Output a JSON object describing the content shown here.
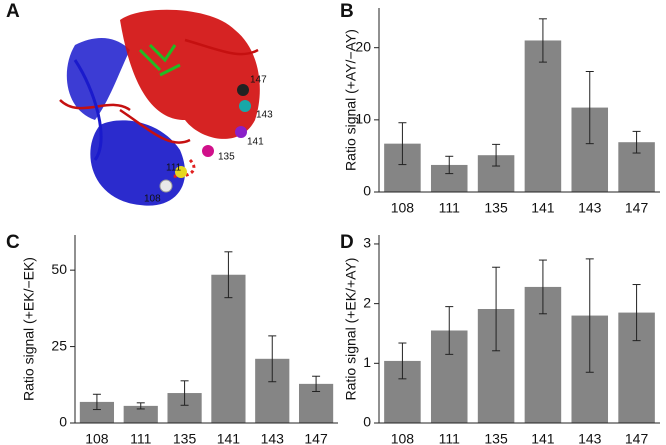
{
  "chart_data": [
    {
      "type": "image",
      "panel": "A",
      "labels": [
        "147",
        "143",
        "141",
        "135",
        "111",
        "108"
      ]
    },
    {
      "type": "bar",
      "panel": "B",
      "ylabel": "Ratio signal (+AY/−AY)",
      "categories": [
        "108",
        "111",
        "135",
        "141",
        "143",
        "147"
      ],
      "values": [
        6.7,
        3.75,
        5.1,
        21,
        11.7,
        6.9
      ],
      "errors": [
        2.9,
        1.2,
        1.5,
        3,
        5,
        1.5
      ],
      "ylim": [
        0,
        25.5
      ],
      "yticks": [
        0,
        10,
        20
      ],
      "color": "#858585"
    },
    {
      "type": "bar",
      "panel": "C",
      "ylabel": "Ratio signal (+EK/−EK)",
      "categories": [
        "108",
        "111",
        "135",
        "141",
        "143",
        "147"
      ],
      "values": [
        6.9,
        5.6,
        9.8,
        48.5,
        21,
        12.8
      ],
      "errors": [
        2.5,
        1,
        4,
        7.5,
        7.5,
        2.5
      ],
      "ylim": [
        0,
        61.5
      ],
      "yticks": [
        0,
        25,
        50
      ],
      "color": "#858585"
    },
    {
      "type": "bar",
      "panel": "D",
      "ylabel": "Ratio signal (+EK/+AY)",
      "categories": [
        "108",
        "111",
        "135",
        "141",
        "143",
        "147"
      ],
      "values": [
        1.04,
        1.55,
        1.91,
        2.28,
        1.8,
        1.85
      ],
      "errors": [
        0.3,
        0.4,
        0.7,
        0.45,
        0.95,
        0.47
      ],
      "ylim": [
        0,
        3.15
      ],
      "yticks": [
        0,
        1,
        2,
        3
      ],
      "color": "#858585"
    }
  ]
}
